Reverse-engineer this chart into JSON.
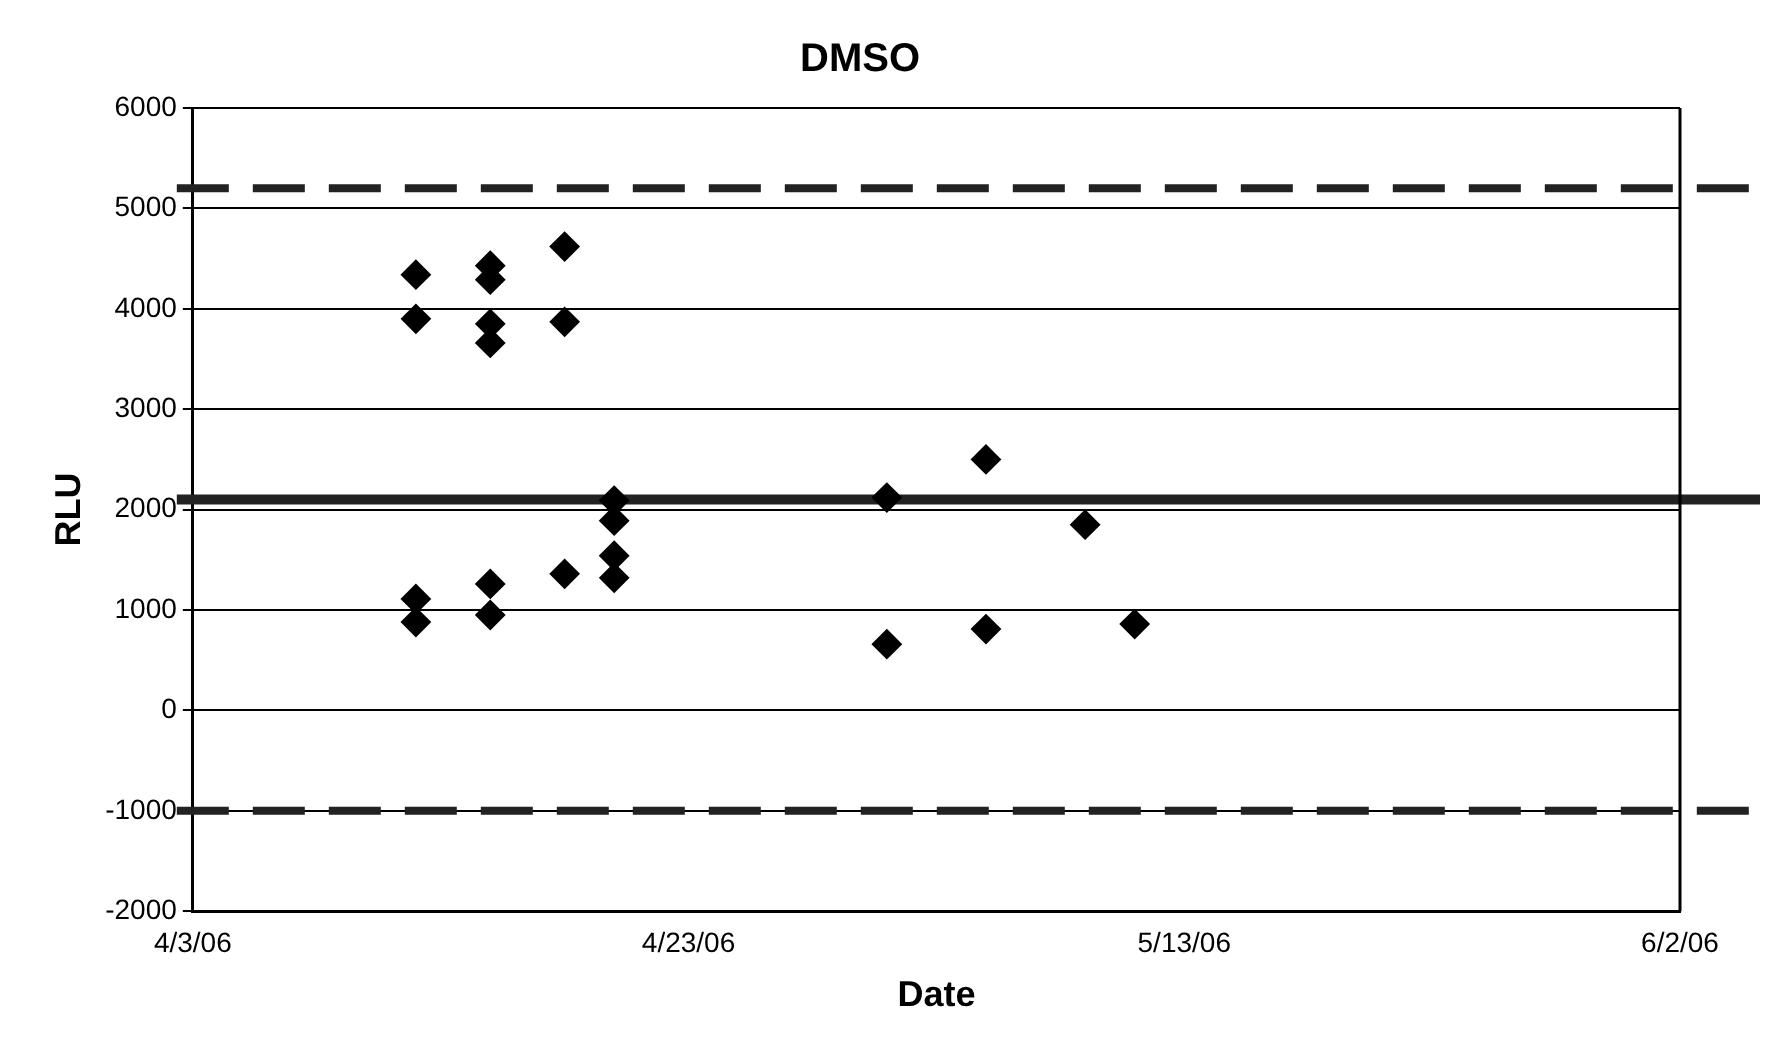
{
  "chart_data": {
    "type": "scatter",
    "title": "DMSO",
    "xlabel": "Date",
    "ylabel": "RLU",
    "x": [
      "2006-04-12",
      "2006-04-12",
      "2006-04-12",
      "2006-04-12",
      "2006-04-15",
      "2006-04-15",
      "2006-04-15",
      "2006-04-15",
      "2006-04-15",
      "2006-04-15",
      "2006-04-18",
      "2006-04-18",
      "2006-04-18",
      "2006-04-20",
      "2006-04-20",
      "2006-04-20",
      "2006-04-20",
      "2006-05-01",
      "2006-05-01",
      "2006-05-05",
      "2006-05-05",
      "2006-05-09",
      "2006-05-11"
    ],
    "series": [
      {
        "color": "#000000",
        "values": [
          4340,
          3900,
          1110,
          880,
          4430,
          4290,
          3850,
          3660,
          1260,
          950,
          4620,
          3870,
          1360,
          2090,
          1890,
          1540,
          1320,
          2120,
          660,
          2500,
          810,
          1850,
          860
        ]
      }
    ],
    "marker": "diamond",
    "xlim": [
      "2006-04-03",
      "2006-06-02"
    ],
    "xticks": [
      {
        "value": "2006-04-03",
        "label": "4/3/06"
      },
      {
        "value": "2006-04-23",
        "label": "4/23/06"
      },
      {
        "value": "2006-05-13",
        "label": "5/13/06"
      },
      {
        "value": "2006-06-02",
        "label": "6/2/06"
      }
    ],
    "ylim": [
      -2000,
      6000
    ],
    "yticks": [
      -2000,
      -1000,
      0,
      1000,
      2000,
      3000,
      4000,
      5000,
      6000
    ],
    "grid": "y",
    "legend": false,
    "ref_lines": [
      {
        "axis": "y",
        "value": 5200,
        "color": "#222222",
        "line_style": "dashed"
      },
      {
        "axis": "y",
        "value": 2100,
        "color": "#222222",
        "line_style": "solid"
      },
      {
        "axis": "y",
        "value": -1000,
        "color": "#222222",
        "line_style": "dashed"
      }
    ]
  }
}
